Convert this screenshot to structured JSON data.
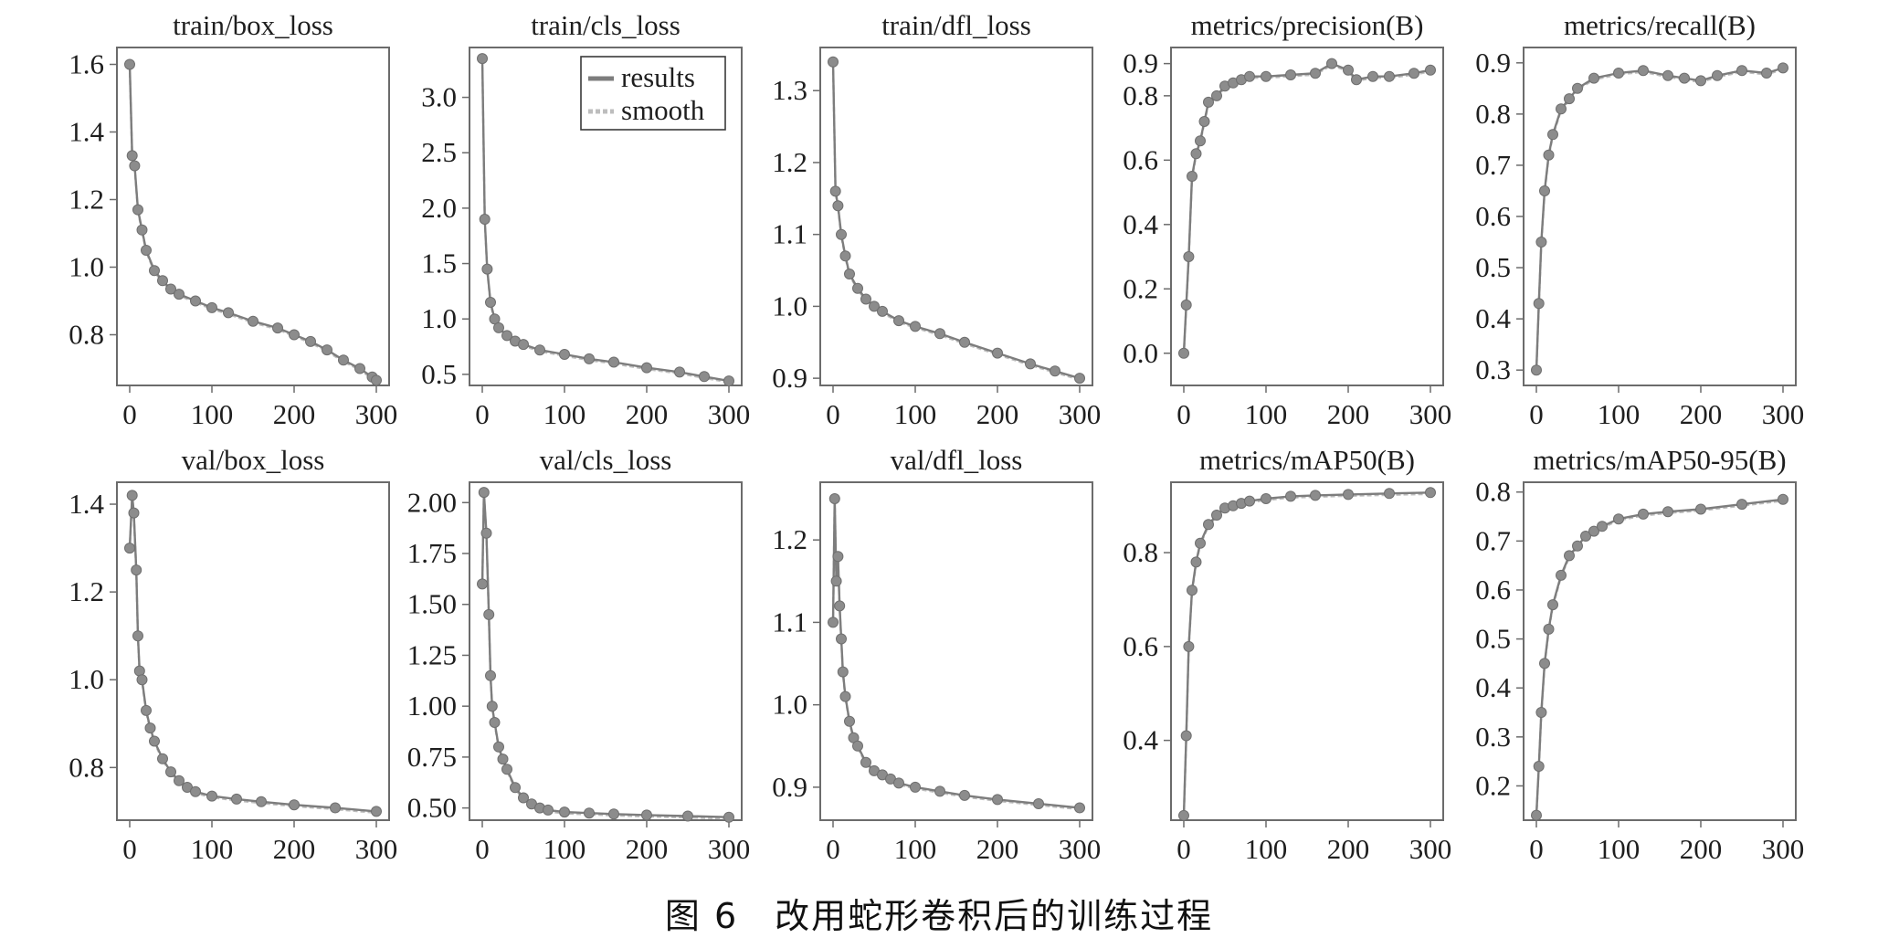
{
  "caption": "图 6　改用蛇形卷积后的训练过程",
  "legend": {
    "results": "results",
    "smooth": "smooth"
  },
  "colors": {
    "results": "#7d7d7d",
    "smooth": "#bdbdbd",
    "frame": "#6b6b6b"
  },
  "chart_data": [
    {
      "type": "line",
      "title": "train/box_loss",
      "xlim": [
        0,
        300
      ],
      "ylim": [
        0.65,
        1.65
      ],
      "xticks": [
        "0",
        "100",
        "200",
        "300"
      ],
      "yticks": [
        "0.8",
        "1.0",
        "1.2",
        "1.4",
        "1.6"
      ],
      "series": [
        {
          "x": [
            0,
            3,
            6,
            10,
            15,
            20,
            30,
            40,
            50,
            60,
            80,
            100,
            120,
            150,
            180,
            200,
            220,
            240,
            260,
            280,
            295,
            300
          ],
          "values": [
            1.6,
            1.33,
            1.3,
            1.17,
            1.11,
            1.05,
            0.99,
            0.96,
            0.935,
            0.92,
            0.9,
            0.88,
            0.865,
            0.84,
            0.82,
            0.8,
            0.78,
            0.755,
            0.725,
            0.7,
            0.675,
            0.665
          ]
        }
      ]
    },
    {
      "type": "line",
      "title": "train/cls_loss",
      "xlim": [
        0,
        300
      ],
      "ylim": [
        0.4,
        3.45
      ],
      "xticks": [
        "0",
        "100",
        "200",
        "300"
      ],
      "yticks": [
        "0.5",
        "1.0",
        "1.5",
        "2.0",
        "2.5",
        "3.0"
      ],
      "legend": "top-right",
      "series": [
        {
          "x": [
            0,
            3,
            6,
            10,
            15,
            20,
            30,
            40,
            50,
            70,
            100,
            130,
            160,
            200,
            240,
            270,
            300
          ],
          "values": [
            3.35,
            1.9,
            1.45,
            1.15,
            1.0,
            0.92,
            0.85,
            0.8,
            0.77,
            0.72,
            0.68,
            0.64,
            0.61,
            0.56,
            0.52,
            0.48,
            0.44
          ]
        }
      ]
    },
    {
      "type": "line",
      "title": "train/dfl_loss",
      "xlim": [
        0,
        300
      ],
      "ylim": [
        0.89,
        1.36
      ],
      "xticks": [
        "0",
        "100",
        "200",
        "300"
      ],
      "yticks": [
        "0.9",
        "1.0",
        "1.1",
        "1.2",
        "1.3"
      ],
      "series": [
        {
          "x": [
            0,
            3,
            6,
            10,
            15,
            20,
            30,
            40,
            50,
            60,
            80,
            100,
            130,
            160,
            200,
            240,
            270,
            300
          ],
          "values": [
            1.34,
            1.16,
            1.14,
            1.1,
            1.07,
            1.045,
            1.025,
            1.01,
            1.0,
            0.993,
            0.98,
            0.972,
            0.962,
            0.95,
            0.935,
            0.92,
            0.91,
            0.9
          ]
        }
      ]
    },
    {
      "type": "line",
      "title": "metrics/precision(B)",
      "xlim": [
        0,
        300
      ],
      "ylim": [
        -0.1,
        0.95
      ],
      "xticks": [
        "0",
        "100",
        "200",
        "300"
      ],
      "yticks": [
        "0.0",
        "0.2",
        "0.4",
        "0.6",
        "0.8",
        "0.9"
      ],
      "series": [
        {
          "x": [
            0,
            3,
            6,
            10,
            15,
            20,
            25,
            30,
            40,
            50,
            60,
            70,
            80,
            100,
            130,
            160,
            180,
            200,
            210,
            230,
            250,
            280,
            300
          ],
          "values": [
            0.0,
            0.15,
            0.3,
            0.55,
            0.62,
            0.66,
            0.72,
            0.78,
            0.8,
            0.83,
            0.84,
            0.85,
            0.86,
            0.86,
            0.865,
            0.87,
            0.9,
            0.88,
            0.85,
            0.86,
            0.86,
            0.87,
            0.88
          ]
        }
      ]
    },
    {
      "type": "line",
      "title": "metrics/recall(B)",
      "xlim": [
        0,
        300
      ],
      "ylim": [
        0.27,
        0.93
      ],
      "xticks": [
        "0",
        "100",
        "200",
        "300"
      ],
      "yticks": [
        "0.3",
        "0.4",
        "0.5",
        "0.6",
        "0.7",
        "0.8",
        "0.9"
      ],
      "series": [
        {
          "x": [
            0,
            3,
            6,
            10,
            15,
            20,
            30,
            40,
            50,
            70,
            100,
            130,
            160,
            180,
            200,
            220,
            250,
            280,
            300
          ],
          "values": [
            0.3,
            0.43,
            0.55,
            0.65,
            0.72,
            0.76,
            0.81,
            0.83,
            0.85,
            0.87,
            0.88,
            0.885,
            0.875,
            0.87,
            0.865,
            0.875,
            0.885,
            0.88,
            0.89
          ]
        }
      ]
    },
    {
      "type": "line",
      "title": "val/box_loss",
      "xlim": [
        0,
        300
      ],
      "ylim": [
        0.68,
        1.45
      ],
      "xticks": [
        "0",
        "100",
        "200",
        "300"
      ],
      "yticks": [
        "0.8",
        "1.0",
        "1.2",
        "1.4"
      ],
      "series": [
        {
          "x": [
            0,
            3,
            5,
            8,
            10,
            12,
            15,
            20,
            25,
            30,
            40,
            50,
            60,
            70,
            80,
            100,
            130,
            160,
            200,
            250,
            300
          ],
          "values": [
            1.3,
            1.42,
            1.38,
            1.25,
            1.1,
            1.02,
            1.0,
            0.93,
            0.89,
            0.86,
            0.82,
            0.79,
            0.77,
            0.755,
            0.745,
            0.735,
            0.728,
            0.722,
            0.715,
            0.708,
            0.7
          ]
        }
      ]
    },
    {
      "type": "line",
      "title": "val/cls_loss",
      "xlim": [
        0,
        300
      ],
      "ylim": [
        0.44,
        2.1
      ],
      "xticks": [
        "0",
        "100",
        "200",
        "300"
      ],
      "yticks": [
        "0.50",
        "0.75",
        "1.00",
        "1.25",
        "1.50",
        "1.75",
        "2.00"
      ],
      "series": [
        {
          "x": [
            0,
            2,
            5,
            8,
            10,
            12,
            15,
            20,
            25,
            30,
            40,
            50,
            60,
            70,
            80,
            100,
            130,
            160,
            200,
            250,
            300
          ],
          "values": [
            1.6,
            2.05,
            1.85,
            1.45,
            1.15,
            1.0,
            0.92,
            0.8,
            0.74,
            0.69,
            0.6,
            0.55,
            0.52,
            0.5,
            0.49,
            0.48,
            0.475,
            0.47,
            0.465,
            0.46,
            0.455
          ]
        }
      ]
    },
    {
      "type": "line",
      "title": "val/dfl_loss",
      "xlim": [
        0,
        300
      ],
      "ylim": [
        0.86,
        1.27
      ],
      "xticks": [
        "0",
        "100",
        "200",
        "300"
      ],
      "yticks": [
        "0.9",
        "1.0",
        "1.1",
        "1.2"
      ],
      "series": [
        {
          "x": [
            0,
            2,
            4,
            6,
            8,
            10,
            12,
            15,
            20,
            25,
            30,
            40,
            50,
            60,
            70,
            80,
            100,
            130,
            160,
            200,
            250,
            300
          ],
          "values": [
            1.1,
            1.25,
            1.15,
            1.18,
            1.12,
            1.08,
            1.04,
            1.01,
            0.98,
            0.96,
            0.95,
            0.93,
            0.92,
            0.915,
            0.91,
            0.905,
            0.9,
            0.895,
            0.89,
            0.885,
            0.88,
            0.875
          ]
        }
      ]
    },
    {
      "type": "line",
      "title": "metrics/mAP50(B)",
      "xlim": [
        0,
        300
      ],
      "ylim": [
        0.23,
        0.95
      ],
      "xticks": [
        "0",
        "100",
        "200",
        "300"
      ],
      "yticks": [
        "0.4",
        "0.6",
        "0.8"
      ],
      "series": [
        {
          "x": [
            0,
            3,
            6,
            10,
            15,
            20,
            30,
            40,
            50,
            60,
            70,
            80,
            100,
            130,
            160,
            200,
            250,
            300
          ],
          "values": [
            0.24,
            0.41,
            0.6,
            0.72,
            0.78,
            0.82,
            0.86,
            0.88,
            0.895,
            0.9,
            0.905,
            0.91,
            0.915,
            0.92,
            0.922,
            0.924,
            0.926,
            0.928
          ]
        }
      ]
    },
    {
      "type": "line",
      "title": "metrics/mAP50-95(B)",
      "xlim": [
        0,
        300
      ],
      "ylim": [
        0.13,
        0.82
      ],
      "xticks": [
        "0",
        "100",
        "200",
        "300"
      ],
      "yticks": [
        "0.2",
        "0.3",
        "0.4",
        "0.5",
        "0.6",
        "0.7",
        "0.8"
      ],
      "series": [
        {
          "x": [
            0,
            3,
            6,
            10,
            15,
            20,
            30,
            40,
            50,
            60,
            70,
            80,
            100,
            130,
            160,
            200,
            250,
            300
          ],
          "values": [
            0.14,
            0.24,
            0.35,
            0.45,
            0.52,
            0.57,
            0.63,
            0.67,
            0.69,
            0.71,
            0.72,
            0.73,
            0.745,
            0.755,
            0.76,
            0.765,
            0.775,
            0.785
          ]
        }
      ]
    }
  ]
}
